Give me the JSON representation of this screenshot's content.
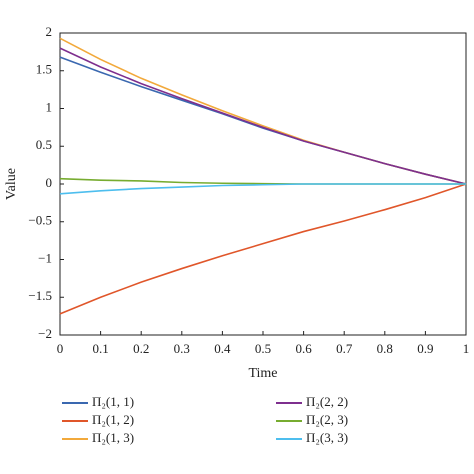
{
  "chart_data": {
    "type": "line",
    "x_label": "Time",
    "y_label": "Value",
    "x": [
      0,
      0.1,
      0.2,
      0.3,
      0.4,
      0.5,
      0.6,
      0.7,
      0.8,
      0.9,
      1
    ],
    "series": [
      {
        "name": "Π₂(1, 1)",
        "color": "#3a68b0",
        "values": [
          1.68,
          1.48,
          1.29,
          1.11,
          0.93,
          0.74,
          0.57,
          0.42,
          0.27,
          0.13,
          0
        ]
      },
      {
        "name": "Π₂(1, 2)",
        "color": "#e0562a",
        "values": [
          -1.72,
          -1.5,
          -1.3,
          -1.12,
          -0.95,
          -0.79,
          -0.63,
          -0.49,
          -0.34,
          -0.18,
          0
        ]
      },
      {
        "name": "Π₂(1, 3)",
        "color": "#f2a93b",
        "values": [
          1.93,
          1.65,
          1.4,
          1.18,
          0.97,
          0.77,
          0.58,
          0.42,
          0.27,
          0.13,
          0
        ]
      },
      {
        "name": "Π₂(2, 2)",
        "color": "#7e2f8e",
        "values": [
          1.8,
          1.55,
          1.33,
          1.13,
          0.94,
          0.75,
          0.57,
          0.42,
          0.27,
          0.13,
          0
        ]
      },
      {
        "name": "Π₂(2, 3)",
        "color": "#77ac30",
        "values": [
          0.07,
          0.05,
          0.04,
          0.02,
          0.01,
          0.005,
          0,
          0,
          0,
          0,
          0
        ]
      },
      {
        "name": "Π₂(3, 3)",
        "color": "#4dbeee",
        "values": [
          -0.13,
          -0.09,
          -0.06,
          -0.04,
          -0.02,
          -0.01,
          0,
          0,
          0,
          0,
          0
        ]
      }
    ],
    "xlim": [
      0,
      1
    ],
    "xticks": [
      0,
      0.1,
      0.2,
      0.3,
      0.4,
      0.5,
      0.6,
      0.7,
      0.8,
      0.9,
      1
    ],
    "ylim": [
      -2,
      2
    ],
    "yticks": [
      {
        "value": -2,
        "label": "−2"
      },
      {
        "value": -1.5,
        "label": "−1.5"
      },
      {
        "value": -1,
        "label": "−1"
      },
      {
        "value": -0.5,
        "label": "−0.5"
      },
      0,
      0.5,
      1,
      1.5,
      2
    ],
    "grid": false
  }
}
